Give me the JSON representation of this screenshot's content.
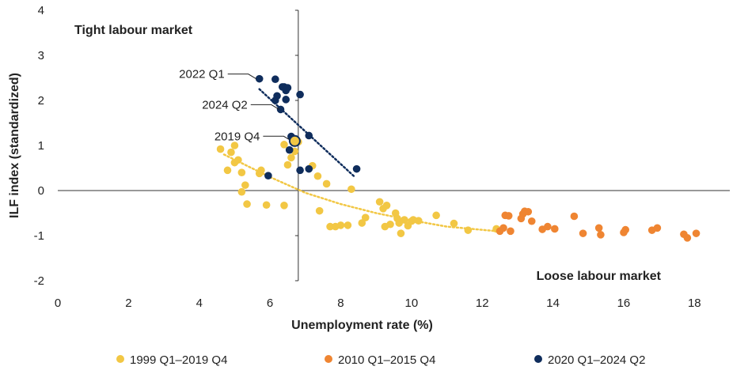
{
  "chart_data": {
    "type": "scatter",
    "title": "",
    "xlabel": "Unemployment rate (%)",
    "ylabel": "ILF index (standardized)",
    "xlim": [
      0,
      19
    ],
    "ylim": [
      -2,
      4
    ],
    "xticks": [
      0,
      2,
      4,
      6,
      8,
      10,
      12,
      14,
      16,
      18
    ],
    "yticks": [
      -2,
      -1,
      0,
      1,
      2,
      3,
      4
    ],
    "grid": false,
    "legend_position": "bottom",
    "region_labels": {
      "top_left": "Tight labour market",
      "bottom_right": "Loose labour market"
    },
    "annotations": [
      {
        "text": "2022 Q1",
        "x": 5.7,
        "y": 2.48
      },
      {
        "text": "2024 Q2",
        "x": 6.35,
        "y": 1.8
      },
      {
        "text": "2019 Q4",
        "x": 6.7,
        "y": 1.1
      }
    ],
    "series": [
      {
        "name": "1999 Q1–2019 Q4",
        "color": "#f2c744",
        "trendline": {
          "type": "quadratic",
          "x_range": [
            4.7,
            12.4
          ],
          "points": [
            [
              4.7,
              0.8
            ],
            [
              6.0,
              0.3
            ],
            [
              7.0,
              -0.05
            ],
            [
              8.0,
              -0.3
            ],
            [
              9.0,
              -0.5
            ],
            [
              10.0,
              -0.66
            ],
            [
              11.0,
              -0.8
            ],
            [
              12.4,
              -0.9
            ]
          ]
        },
        "points": [
          [
            4.6,
            0.92
          ],
          [
            4.9,
            0.85
          ],
          [
            5.0,
            1.0
          ],
          [
            5.0,
            0.62
          ],
          [
            5.1,
            0.68
          ],
          [
            5.2,
            0.4
          ],
          [
            4.8,
            0.45
          ],
          [
            5.2,
            -0.03
          ],
          [
            5.3,
            0.12
          ],
          [
            5.35,
            -0.3
          ],
          [
            5.7,
            0.38
          ],
          [
            5.75,
            0.45
          ],
          [
            5.9,
            -0.32
          ],
          [
            6.4,
            -0.33
          ],
          [
            6.4,
            1.02
          ],
          [
            6.5,
            0.57
          ],
          [
            6.6,
            0.73
          ],
          [
            6.7,
            0.87
          ],
          [
            6.8,
            1.08
          ],
          [
            7.2,
            0.55
          ],
          [
            7.35,
            0.32
          ],
          [
            7.4,
            -0.45
          ],
          [
            7.6,
            0.15
          ],
          [
            7.7,
            -0.8
          ],
          [
            7.85,
            -0.8
          ],
          [
            8.0,
            -0.77
          ],
          [
            8.2,
            -0.77
          ],
          [
            8.3,
            0.03
          ],
          [
            8.6,
            -0.72
          ],
          [
            8.7,
            -0.6
          ],
          [
            9.1,
            -0.25
          ],
          [
            9.2,
            -0.4
          ],
          [
            9.25,
            -0.8
          ],
          [
            9.3,
            -0.33
          ],
          [
            9.4,
            -0.75
          ],
          [
            9.55,
            -0.5
          ],
          [
            9.6,
            -0.62
          ],
          [
            9.65,
            -0.72
          ],
          [
            9.7,
            -0.95
          ],
          [
            9.8,
            -0.65
          ],
          [
            9.9,
            -0.78
          ],
          [
            10.0,
            -0.68
          ],
          [
            10.05,
            -0.65
          ],
          [
            10.2,
            -0.67
          ],
          [
            10.7,
            -0.55
          ],
          [
            11.2,
            -0.73
          ],
          [
            11.6,
            -0.88
          ],
          [
            12.4,
            -0.85
          ]
        ]
      },
      {
        "name": "2010 Q1–2015 Q4",
        "color": "#ef8532",
        "points": [
          [
            12.5,
            -0.9
          ],
          [
            12.6,
            -0.83
          ],
          [
            12.65,
            -0.55
          ],
          [
            12.75,
            -0.56
          ],
          [
            12.8,
            -0.9
          ],
          [
            13.1,
            -0.62
          ],
          [
            13.15,
            -0.52
          ],
          [
            13.2,
            -0.46
          ],
          [
            13.3,
            -0.47
          ],
          [
            13.4,
            -0.68
          ],
          [
            13.7,
            -0.86
          ],
          [
            13.85,
            -0.8
          ],
          [
            14.05,
            -0.85
          ],
          [
            14.6,
            -0.57
          ],
          [
            14.85,
            -0.95
          ],
          [
            15.3,
            -0.83
          ],
          [
            15.35,
            -0.98
          ],
          [
            16.0,
            -0.93
          ],
          [
            16.05,
            -0.87
          ],
          [
            16.8,
            -0.88
          ],
          [
            16.95,
            -0.83
          ],
          [
            17.7,
            -0.97
          ],
          [
            17.8,
            -1.05
          ],
          [
            18.05,
            -0.95
          ]
        ]
      },
      {
        "name": "2020 Q1–2024 Q2",
        "color": "#0f2d5c",
        "trendline": {
          "type": "linear",
          "x_range": [
            5.7,
            8.4
          ],
          "points": [
            [
              5.7,
              2.25
            ],
            [
              8.4,
              0.3
            ]
          ]
        },
        "points": [
          [
            5.7,
            2.48
          ],
          [
            6.15,
            2.47
          ],
          [
            6.35,
            2.3
          ],
          [
            6.4,
            2.3
          ],
          [
            6.45,
            2.22
          ],
          [
            6.5,
            2.28
          ],
          [
            6.2,
            2.1
          ],
          [
            6.15,
            2.0
          ],
          [
            6.45,
            2.02
          ],
          [
            6.3,
            1.8
          ],
          [
            6.85,
            2.13
          ],
          [
            6.6,
            1.2
          ],
          [
            6.7,
            1.13
          ],
          [
            6.75,
            1.1
          ],
          [
            7.1,
            1.22
          ],
          [
            6.55,
            0.9
          ],
          [
            5.95,
            0.33
          ],
          [
            6.85,
            0.45
          ],
          [
            7.1,
            0.48
          ],
          [
            8.45,
            0.48
          ]
        ]
      }
    ]
  }
}
